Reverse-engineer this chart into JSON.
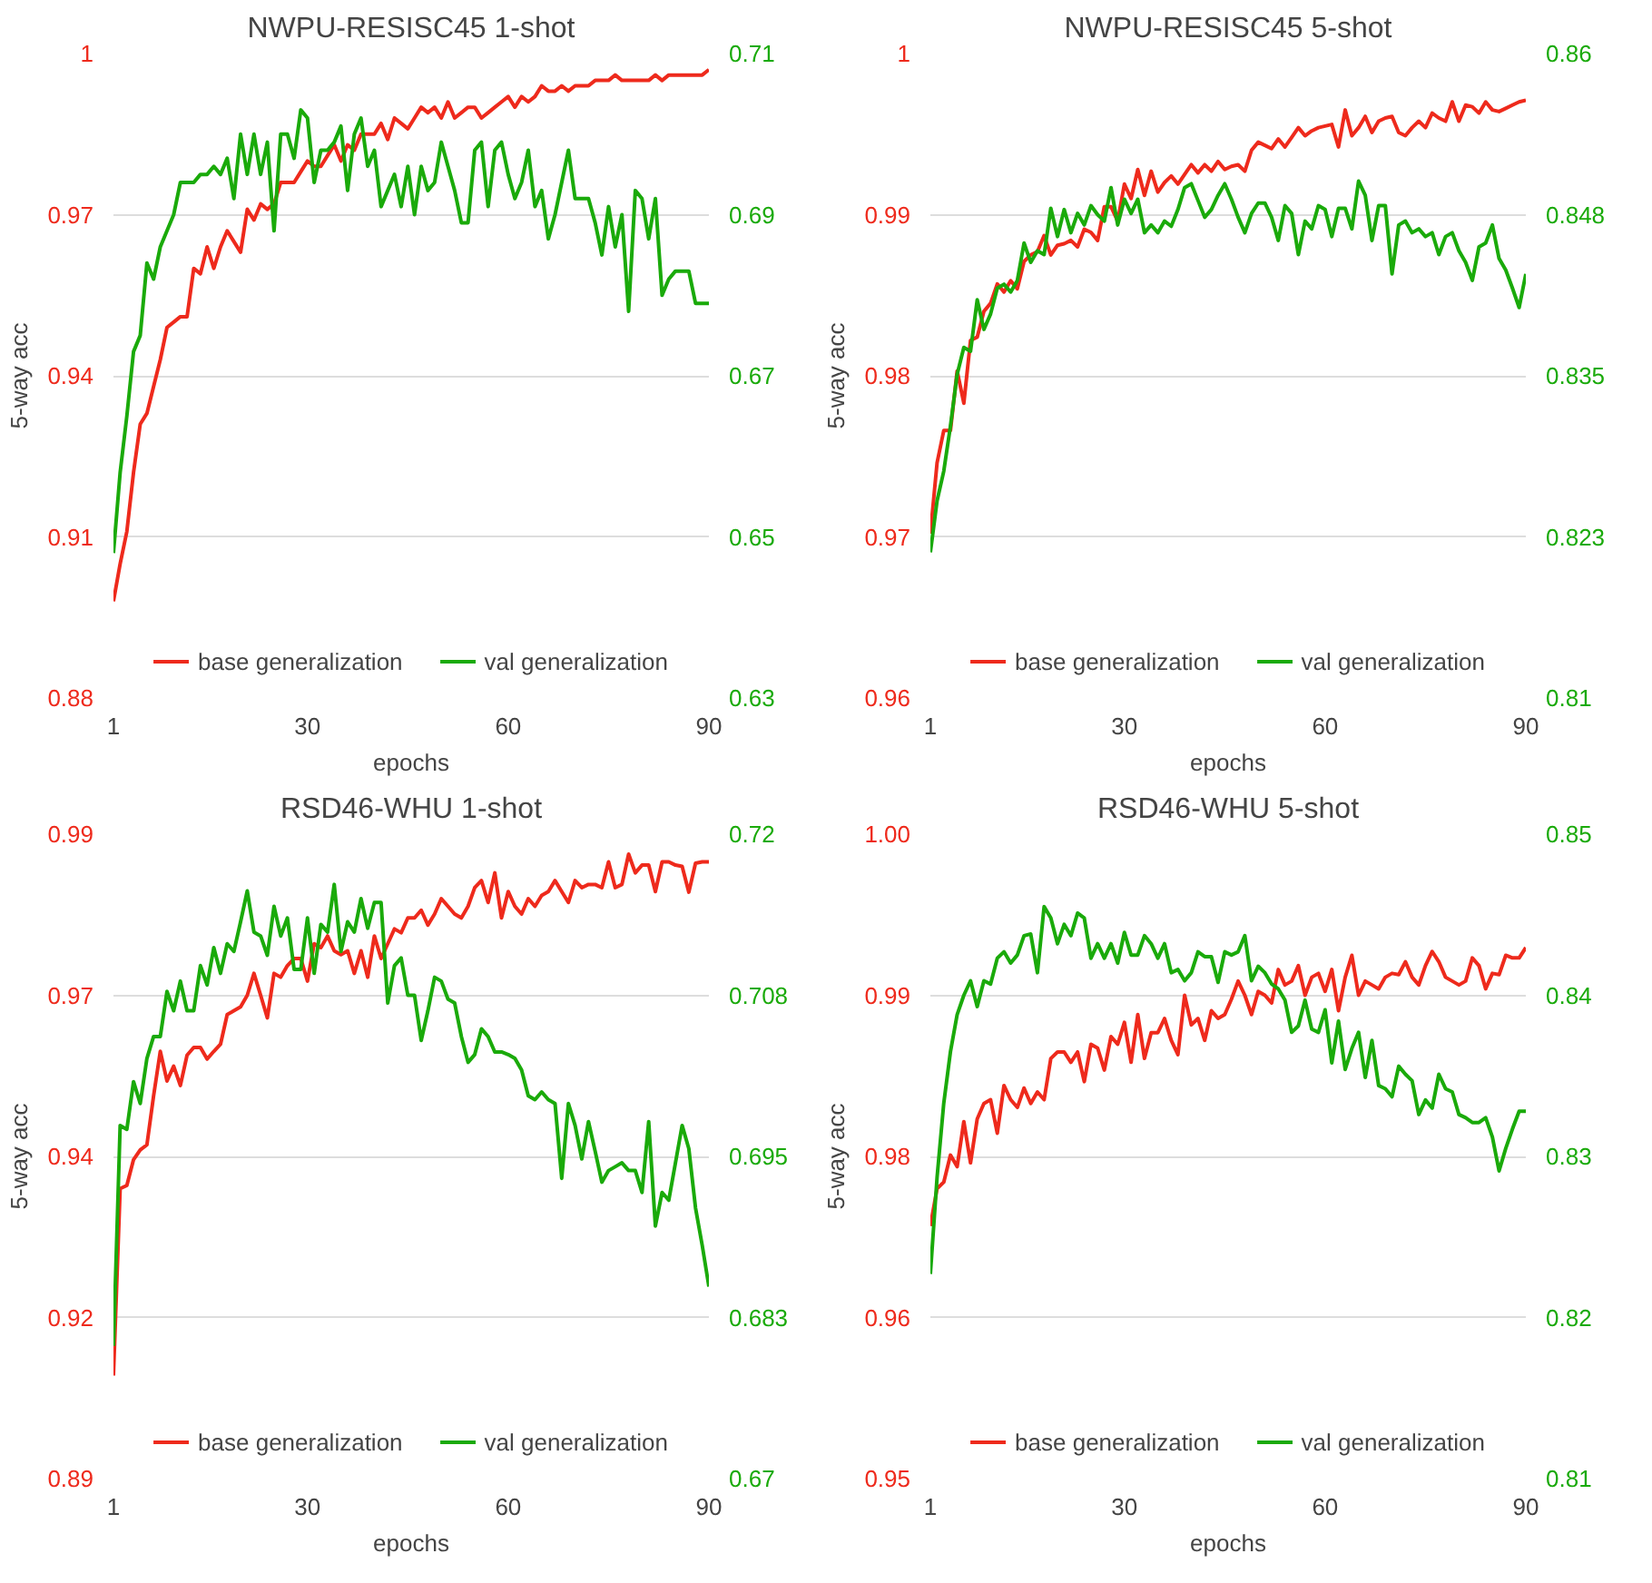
{
  "chart_data": [
    {
      "type": "line",
      "title": "NWPU-RESISC45 1-shot",
      "xlabel": "epochs",
      "ylabel": "5-way acc",
      "x": [
        1,
        2,
        3,
        4,
        5,
        6,
        7,
        8,
        9,
        10,
        11,
        12,
        13,
        14,
        15,
        16,
        17,
        18,
        19,
        20,
        21,
        22,
        23,
        24,
        25,
        26,
        27,
        28,
        29,
        30,
        31,
        32,
        33,
        34,
        35,
        36,
        37,
        38,
        39,
        40,
        41,
        42,
        43,
        44,
        45,
        46,
        47,
        48,
        49,
        50,
        51,
        52,
        53,
        54,
        55,
        56,
        57,
        58,
        59,
        60,
        61,
        62,
        63,
        64,
        65,
        66,
        67,
        68,
        69,
        70,
        71,
        72,
        73,
        74,
        75,
        76,
        77,
        78,
        79,
        80,
        81,
        82,
        83,
        84,
        85,
        86,
        87,
        88,
        89,
        90
      ],
      "xlim": [
        1,
        90
      ],
      "xticks": [
        1,
        30,
        60,
        90
      ],
      "ylim": [
        0.88,
        1
      ],
      "yticks": [
        0.88,
        0.91,
        0.94,
        0.97,
        1
      ],
      "y2lim": [
        0.63,
        0.71
      ],
      "y2ticks": [
        0.63,
        0.65,
        0.67,
        0.69,
        0.71
      ],
      "grid": "y",
      "legend": "bottom",
      "series": [
        {
          "name": "base generalization",
          "color": "#ee2a1c",
          "axis": "y",
          "values": [
            0.898,
            0.905,
            0.911,
            0.922,
            0.931,
            0.933,
            0.938,
            0.943,
            0.949,
            0.95,
            0.951,
            0.951,
            0.96,
            0.959,
            0.964,
            0.96,
            0.964,
            0.967,
            0.965,
            0.963,
            0.971,
            0.969,
            0.972,
            0.971,
            0.972,
            0.976,
            0.976,
            0.976,
            0.978,
            0.98,
            0.979,
            0.979,
            0.981,
            0.983,
            0.98,
            0.983,
            0.982,
            0.985,
            0.985,
            0.985,
            0.987,
            0.984,
            0.988,
            0.987,
            0.986,
            0.988,
            0.99,
            0.989,
            0.99,
            0.988,
            0.991,
            0.988,
            0.989,
            0.99,
            0.99,
            0.988,
            0.989,
            0.99,
            0.991,
            0.992,
            0.99,
            0.992,
            0.991,
            0.992,
            0.994,
            0.993,
            0.993,
            0.994,
            0.993,
            0.994,
            0.994,
            0.994,
            0.995,
            0.995,
            0.995,
            0.996,
            0.995,
            0.995,
            0.995,
            0.995,
            0.995,
            0.996,
            0.995,
            0.996,
            0.996,
            0.996,
            0.996,
            0.996,
            0.996,
            0.997
          ]
        },
        {
          "name": "val generalization",
          "color": "#1aaa0a",
          "axis": "y2",
          "values": [
            0.648,
            0.658,
            0.665,
            0.673,
            0.675,
            0.684,
            0.682,
            0.686,
            0.688,
            0.69,
            0.694,
            0.694,
            0.694,
            0.695,
            0.695,
            0.696,
            0.695,
            0.697,
            0.692,
            0.7,
            0.695,
            0.7,
            0.695,
            0.699,
            0.688,
            0.7,
            0.7,
            0.697,
            0.703,
            0.702,
            0.694,
            0.698,
            0.698,
            0.699,
            0.701,
            0.693,
            0.7,
            0.702,
            0.696,
            0.698,
            0.691,
            0.693,
            0.695,
            0.691,
            0.696,
            0.69,
            0.696,
            0.693,
            0.694,
            0.699,
            0.696,
            0.693,
            0.689,
            0.689,
            0.698,
            0.699,
            0.691,
            0.698,
            0.699,
            0.695,
            0.692,
            0.694,
            0.698,
            0.691,
            0.693,
            0.687,
            0.69,
            0.694,
            0.698,
            0.692,
            0.692,
            0.692,
            0.689,
            0.685,
            0.691,
            0.686,
            0.69,
            0.678,
            0.693,
            0.692,
            0.687,
            0.692,
            0.68,
            0.682,
            0.683,
            0.683,
            0.683,
            0.679,
            0.679,
            0.679
          ]
        }
      ]
    },
    {
      "type": "line",
      "title": "NWPU-RESISC45 5-shot",
      "xlabel": "epochs",
      "ylabel": "5-way acc",
      "x": [
        1,
        2,
        3,
        4,
        5,
        6,
        7,
        8,
        9,
        10,
        11,
        12,
        13,
        14,
        15,
        16,
        17,
        18,
        19,
        20,
        21,
        22,
        23,
        24,
        25,
        26,
        27,
        28,
        29,
        30,
        31,
        32,
        33,
        34,
        35,
        36,
        37,
        38,
        39,
        40,
        41,
        42,
        43,
        44,
        45,
        46,
        47,
        48,
        49,
        50,
        51,
        52,
        53,
        54,
        55,
        56,
        57,
        58,
        59,
        60,
        61,
        62,
        63,
        64,
        65,
        66,
        67,
        68,
        69,
        70,
        71,
        72,
        73,
        74,
        75,
        76,
        77,
        78,
        79,
        80,
        81,
        82,
        83,
        84,
        85,
        86,
        87,
        88,
        89,
        90
      ],
      "xlim": [
        1,
        90
      ],
      "xticks": [
        1,
        30,
        60,
        90
      ],
      "ylim": [
        0.96,
        1
      ],
      "yticks": [
        0.96,
        0.97,
        0.98,
        0.99,
        1
      ],
      "y2lim": [
        0.81,
        0.86
      ],
      "y2ticks": [
        0.81,
        {
          "value": 0.8225,
          "label": "0.823"
        },
        0.835,
        {
          "value": 0.8475,
          "label": "0.848"
        },
        0.86
      ],
      "grid": "y",
      "legend": "bottom",
      "series": [
        {
          "name": "base generalization",
          "color": "#ee2a1c",
          "axis": "y",
          "values": [
            0.9702,
            0.9746,
            0.9766,
            0.9766,
            0.9803,
            0.9783,
            0.9822,
            0.9824,
            0.984,
            0.9845,
            0.9857,
            0.9852,
            0.9859,
            0.9854,
            0.9871,
            0.9875,
            0.9877,
            0.9887,
            0.9875,
            0.9881,
            0.9882,
            0.9884,
            0.988,
            0.9891,
            0.9889,
            0.9884,
            0.9905,
            0.9905,
            0.9896,
            0.9919,
            0.991,
            0.9928,
            0.9912,
            0.9927,
            0.9914,
            0.992,
            0.9924,
            0.9919,
            0.9925,
            0.9931,
            0.9926,
            0.9931,
            0.9927,
            0.9933,
            0.9928,
            0.993,
            0.9931,
            0.9927,
            0.994,
            0.9945,
            0.9943,
            0.9941,
            0.9947,
            0.9942,
            0.9948,
            0.9954,
            0.9949,
            0.9952,
            0.9954,
            0.9955,
            0.9956,
            0.9942,
            0.9965,
            0.9949,
            0.9954,
            0.9961,
            0.9951,
            0.9958,
            0.996,
            0.9961,
            0.9951,
            0.9949,
            0.9954,
            0.9958,
            0.9954,
            0.9963,
            0.996,
            0.9958,
            0.997,
            0.9958,
            0.9968,
            0.9967,
            0.9963,
            0.997,
            0.9965,
            0.9964,
            0.9966,
            0.9968,
            0.997,
            0.9971
          ]
        },
        {
          "name": "val generalization",
          "color": "#1aaa0a",
          "axis": "y2",
          "values": [
            0.8213,
            0.8253,
            0.8276,
            0.8311,
            0.8351,
            0.8372,
            0.8369,
            0.8409,
            0.8386,
            0.8398,
            0.8418,
            0.8421,
            0.8415,
            0.8424,
            0.8453,
            0.8438,
            0.8447,
            0.8444,
            0.848,
            0.8458,
            0.8479,
            0.8461,
            0.8476,
            0.8467,
            0.8482,
            0.8475,
            0.847,
            0.8496,
            0.8467,
            0.8487,
            0.8476,
            0.8487,
            0.8461,
            0.8467,
            0.8461,
            0.847,
            0.8466,
            0.8479,
            0.8496,
            0.8499,
            0.8486,
            0.8473,
            0.8479,
            0.849,
            0.8499,
            0.8487,
            0.8473,
            0.8461,
            0.8476,
            0.8484,
            0.8484,
            0.8473,
            0.8455,
            0.8482,
            0.8476,
            0.8444,
            0.847,
            0.8464,
            0.8482,
            0.8479,
            0.8458,
            0.848,
            0.848,
            0.8464,
            0.8501,
            0.849,
            0.8455,
            0.8482,
            0.8482,
            0.8429,
            0.8467,
            0.847,
            0.8461,
            0.8464,
            0.8458,
            0.8461,
            0.8444,
            0.8458,
            0.8461,
            0.8447,
            0.8438,
            0.8424,
            0.845,
            0.8453,
            0.8467,
            0.8441,
            0.8432,
            0.8418,
            0.8403,
            0.8429
          ]
        }
      ]
    },
    {
      "type": "line",
      "title": "RSD46-WHU 1-shot",
      "xlabel": "epochs",
      "ylabel": "5-way acc",
      "x": [
        1,
        2,
        3,
        4,
        5,
        6,
        7,
        8,
        9,
        10,
        11,
        12,
        13,
        14,
        15,
        16,
        17,
        18,
        19,
        20,
        21,
        22,
        23,
        24,
        25,
        26,
        27,
        28,
        29,
        30,
        31,
        32,
        33,
        34,
        35,
        36,
        37,
        38,
        39,
        40,
        41,
        42,
        43,
        44,
        45,
        46,
        47,
        48,
        49,
        50,
        51,
        52,
        53,
        54,
        55,
        56,
        57,
        58,
        59,
        60,
        61,
        62,
        63,
        64,
        65,
        66,
        67,
        68,
        69,
        70,
        71,
        72,
        73,
        74,
        75,
        76,
        77,
        78,
        79,
        80,
        81,
        82,
        83,
        84,
        85,
        86,
        87,
        88,
        89,
        90
      ],
      "xlim": [
        1,
        90
      ],
      "xticks": [
        1,
        30,
        60,
        90
      ],
      "ylim": [
        0.89,
        0.99
      ],
      "yticks": [
        0.89,
        {
          "value": 0.915,
          "label": "0.92"
        },
        0.94,
        {
          "value": 0.965,
          "label": "0.97"
        },
        0.99
      ],
      "y2lim": [
        0.67,
        0.72
      ],
      "y2ticks": [
        0.67,
        {
          "value": 0.6825,
          "label": "0.683"
        },
        0.695,
        {
          "value": 0.7075,
          "label": "0.708"
        },
        0.72
      ],
      "grid": "y",
      "legend": "bottom",
      "series": [
        {
          "name": "base generalization",
          "color": "#ee2a1c",
          "axis": "y",
          "values": [
            0.906,
            0.935,
            0.9355,
            0.9395,
            0.941,
            0.9418,
            0.9494,
            0.9563,
            0.9517,
            0.954,
            0.951,
            0.9557,
            0.9569,
            0.9569,
            0.9551,
            0.9563,
            0.9574,
            0.962,
            0.9626,
            0.9632,
            0.965,
            0.9684,
            0.965,
            0.9615,
            0.9684,
            0.9678,
            0.9696,
            0.9707,
            0.9707,
            0.9672,
            0.973,
            0.9724,
            0.9742,
            0.9719,
            0.9713,
            0.9719,
            0.9684,
            0.9719,
            0.9678,
            0.9742,
            0.9707,
            0.973,
            0.9753,
            0.9747,
            0.977,
            0.977,
            0.9782,
            0.9759,
            0.9776,
            0.98,
            0.9788,
            0.9776,
            0.977,
            0.9788,
            0.9817,
            0.9828,
            0.9794,
            0.984,
            0.977,
            0.9811,
            0.9788,
            0.9776,
            0.98,
            0.9788,
            0.9805,
            0.9811,
            0.9828,
            0.9811,
            0.9794,
            0.9828,
            0.9817,
            0.9822,
            0.9822,
            0.9817,
            0.9857,
            0.9817,
            0.9822,
            0.9869,
            0.984,
            0.9852,
            0.9852,
            0.9811,
            0.9857,
            0.9857,
            0.9852,
            0.985,
            0.981,
            0.9855,
            0.9857,
            0.9857
          ]
        },
        {
          "name": "val generalization",
          "color": "#1aaa0a",
          "axis": "y2",
          "values": [
            0.6803,
            0.6974,
            0.6971,
            0.7008,
            0.6991,
            0.7026,
            0.7043,
            0.7043,
            0.7078,
            0.7063,
            0.7086,
            0.7063,
            0.7063,
            0.7098,
            0.7083,
            0.7112,
            0.7092,
            0.7115,
            0.7109,
            0.7132,
            0.7156,
            0.7124,
            0.7121,
            0.7106,
            0.7144,
            0.7121,
            0.7135,
            0.7095,
            0.7095,
            0.7135,
            0.7092,
            0.713,
            0.7124,
            0.7161,
            0.7109,
            0.7132,
            0.7124,
            0.715,
            0.7127,
            0.7147,
            0.7147,
            0.7069,
            0.7098,
            0.7104,
            0.7075,
            0.7075,
            0.704,
            0.7063,
            0.7089,
            0.7086,
            0.7072,
            0.7069,
            0.7043,
            0.7023,
            0.7029,
            0.7049,
            0.7043,
            0.7031,
            0.7031,
            0.7029,
            0.7026,
            0.7017,
            0.6997,
            0.6994,
            0.7,
            0.6994,
            0.6991,
            0.6933,
            0.6991,
            0.6974,
            0.6948,
            0.6977,
            0.6954,
            0.693,
            0.6939,
            0.6942,
            0.6945,
            0.6939,
            0.6939,
            0.6922,
            0.6977,
            0.6896,
            0.6922,
            0.6916,
            0.6945,
            0.6974,
            0.6956,
            0.691,
            0.6881,
            0.6849
          ]
        }
      ]
    },
    {
      "type": "line",
      "title": "RSD46-WHU 5-shot",
      "xlabel": "epochs",
      "ylabel": "5-way acc",
      "x": [
        1,
        2,
        3,
        4,
        5,
        6,
        7,
        8,
        9,
        10,
        11,
        12,
        13,
        14,
        15,
        16,
        17,
        18,
        19,
        20,
        21,
        22,
        23,
        24,
        25,
        26,
        27,
        28,
        29,
        30,
        31,
        32,
        33,
        34,
        35,
        36,
        37,
        38,
        39,
        40,
        41,
        42,
        43,
        44,
        45,
        46,
        47,
        48,
        49,
        50,
        51,
        52,
        53,
        54,
        55,
        56,
        57,
        58,
        59,
        60,
        61,
        62,
        63,
        64,
        65,
        66,
        67,
        68,
        69,
        70,
        71,
        72,
        73,
        74,
        75,
        76,
        77,
        78,
        79,
        80,
        81,
        82,
        83,
        84,
        85,
        86,
        87,
        88,
        89,
        90
      ],
      "xlim": [
        1,
        90
      ],
      "xticks": [
        1,
        30,
        60,
        90
      ],
      "ylim": [
        0.95,
        1.0
      ],
      "yticks": [
        0.95,
        {
          "value": 0.9625,
          "label": "0.96"
        },
        {
          "value": 0.975,
          "label": "0.98"
        },
        {
          "value": 0.9875,
          "label": "0.99"
        },
        {
          "value": 1.0,
          "label": "1.00"
        }
      ],
      "y2lim": [
        0.81,
        0.85
      ],
      "y2ticks": [
        0.81,
        0.82,
        0.83,
        0.84,
        0.85
      ],
      "grid": "y",
      "legend": "bottom",
      "series": [
        {
          "name": "base generalization",
          "color": "#ee2a1c",
          "axis": "y",
          "values": [
            0.9696,
            0.9725,
            0.973,
            0.9751,
            0.9742,
            0.9777,
            0.9745,
            0.9779,
            0.9791,
            0.9794,
            0.9768,
            0.9805,
            0.9794,
            0.9788,
            0.9803,
            0.9791,
            0.98,
            0.9794,
            0.9826,
            0.9831,
            0.9831,
            0.9823,
            0.9831,
            0.9808,
            0.9837,
            0.9834,
            0.9817,
            0.9843,
            0.9837,
            0.9854,
            0.9823,
            0.986,
            0.9826,
            0.9846,
            0.9846,
            0.9857,
            0.984,
            0.9829,
            0.9875,
            0.9852,
            0.9857,
            0.984,
            0.9863,
            0.9857,
            0.986,
            0.9872,
            0.9886,
            0.9875,
            0.986,
            0.9878,
            0.9875,
            0.9869,
            0.9895,
            0.9883,
            0.9886,
            0.9898,
            0.9875,
            0.9889,
            0.9892,
            0.9878,
            0.9895,
            0.9863,
            0.9889,
            0.9906,
            0.9875,
            0.9886,
            0.9883,
            0.988,
            0.9889,
            0.9892,
            0.9891,
            0.9901,
            0.9889,
            0.9883,
            0.9898,
            0.9909,
            0.9901,
            0.9889,
            0.9886,
            0.9883,
            0.9886,
            0.9904,
            0.9898,
            0.988,
            0.9892,
            0.9891,
            0.9906,
            0.9904,
            0.9904,
            0.9912
          ]
        },
        {
          "name": "val generalization",
          "color": "#1aaa0a",
          "axis": "y2",
          "values": [
            0.8227,
            0.8287,
            0.8333,
            0.8365,
            0.8388,
            0.84,
            0.8409,
            0.8393,
            0.8409,
            0.8407,
            0.8423,
            0.8427,
            0.842,
            0.8425,
            0.8437,
            0.8438,
            0.8414,
            0.8455,
            0.8448,
            0.8432,
            0.8444,
            0.8437,
            0.8451,
            0.8448,
            0.8423,
            0.8432,
            0.8423,
            0.8432,
            0.842,
            0.8439,
            0.8425,
            0.8425,
            0.8437,
            0.8432,
            0.8423,
            0.8432,
            0.8414,
            0.8416,
            0.8409,
            0.8414,
            0.8427,
            0.8424,
            0.8424,
            0.8408,
            0.8427,
            0.8425,
            0.8427,
            0.8437,
            0.8409,
            0.8418,
            0.8414,
            0.8407,
            0.8404,
            0.8397,
            0.8377,
            0.8381,
            0.8397,
            0.8379,
            0.8377,
            0.8391,
            0.8358,
            0.8384,
            0.8354,
            0.8367,
            0.8377,
            0.8349,
            0.8372,
            0.8344,
            0.8342,
            0.8337,
            0.8356,
            0.8351,
            0.8347,
            0.8326,
            0.8335,
            0.833,
            0.8351,
            0.8342,
            0.834,
            0.8326,
            0.8324,
            0.8321,
            0.8321,
            0.8324,
            0.8312,
            0.8291,
            0.8305,
            0.8317,
            0.8328,
            0.8328
          ]
        }
      ]
    }
  ]
}
